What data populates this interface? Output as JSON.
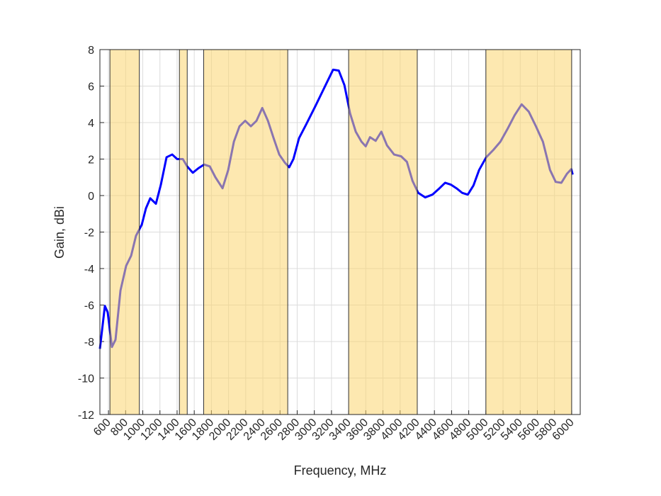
{
  "chart_data": {
    "type": "line",
    "xlabel": "Frequency, MHz",
    "ylabel": "Gain, dBi",
    "xlim": [
      500,
      6100
    ],
    "ylim": [
      -12,
      8
    ],
    "xticks": [
      600,
      800,
      1000,
      1200,
      1400,
      1600,
      1800,
      2000,
      2200,
      2400,
      2600,
      2800,
      3000,
      3200,
      3400,
      3600,
      3800,
      4000,
      4200,
      4400,
      4600,
      4800,
      5000,
      5200,
      5400,
      5600,
      5800,
      6000
    ],
    "yticks": [
      -12,
      -10,
      -8,
      -6,
      -4,
      -2,
      0,
      2,
      4,
      6,
      8
    ],
    "grid": true,
    "bands": [
      [
        617,
        960
      ],
      [
        1427,
        1518
      ],
      [
        1710,
        2690
      ],
      [
        3400,
        4200
      ],
      [
        5000,
        6000
      ]
    ],
    "band_color": "#fbd56f",
    "x": [
      500,
      558,
      591,
      640,
      682,
      740,
      806,
      864,
      921,
      988,
      1037,
      1087,
      1153,
      1211,
      1277,
      1343,
      1401,
      1467,
      1517,
      1583,
      1649,
      1715,
      1781,
      1847,
      1930,
      1996,
      2062,
      2128,
      2194,
      2260,
      2326,
      2393,
      2459,
      2525,
      2591,
      2657,
      2707,
      2756,
      2822,
      2905,
      3012,
      3136,
      3219,
      3285,
      3351,
      3417,
      3483,
      3550,
      3599,
      3649,
      3715,
      3781,
      3847,
      3930,
      4012,
      4079,
      4145,
      4211,
      4293,
      4376,
      4459,
      4525,
      4591,
      4657,
      4723,
      4789,
      4855,
      4921,
      5004,
      5087,
      5169,
      5252,
      5335,
      5417,
      5500,
      5583,
      5665,
      5748,
      5814,
      5880,
      5946,
      5996,
      6012
    ],
    "series": [
      {
        "name": "Gain",
        "color": "#0000ff",
        "values": [
          -8.4,
          -6.05,
          -6.4,
          -8.3,
          -7.9,
          -5.2,
          -3.85,
          -3.3,
          -2.2,
          -1.6,
          -0.7,
          -0.15,
          -0.45,
          0.6,
          2.1,
          2.25,
          2.0,
          2.0,
          1.6,
          1.25,
          1.5,
          1.7,
          1.6,
          1.0,
          0.4,
          1.4,
          2.95,
          3.8,
          4.1,
          3.8,
          4.1,
          4.8,
          4.1,
          3.15,
          2.25,
          1.8,
          1.55,
          2.0,
          3.15,
          3.9,
          4.9,
          6.1,
          6.9,
          6.85,
          6.05,
          4.5,
          3.5,
          2.95,
          2.7,
          3.2,
          3.0,
          3.5,
          2.75,
          2.25,
          2.15,
          1.85,
          0.8,
          0.15,
          -0.1,
          0.05,
          0.4,
          0.7,
          0.6,
          0.4,
          0.15,
          0.05,
          0.55,
          1.4,
          2.1,
          2.5,
          2.95,
          3.65,
          4.4,
          5.0,
          4.6,
          3.8,
          2.95,
          1.4,
          0.75,
          0.7,
          1.2,
          1.45,
          1.15
        ]
      }
    ]
  }
}
